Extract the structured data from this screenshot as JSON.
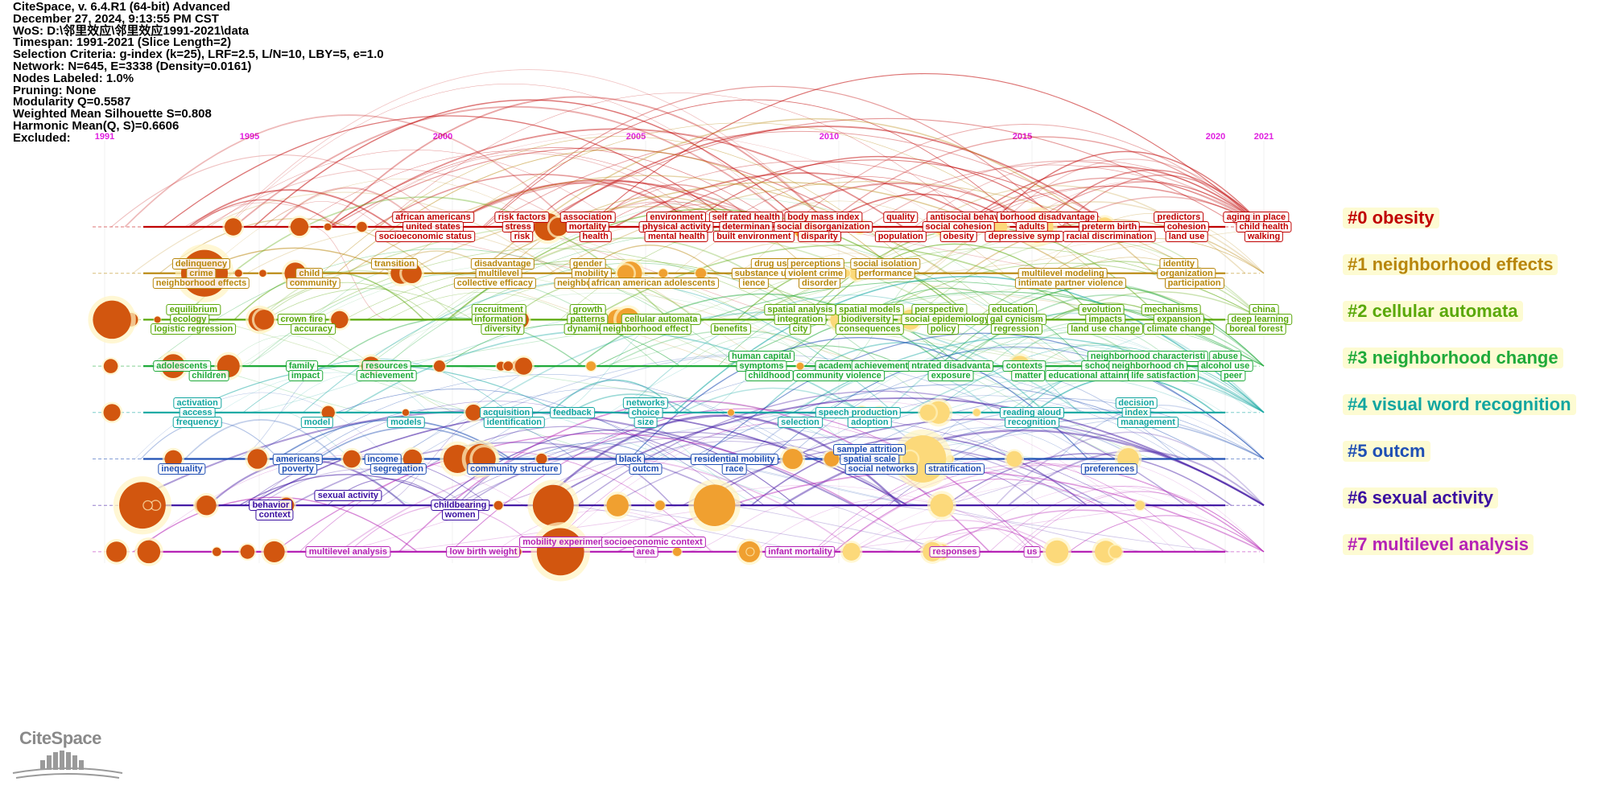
{
  "header": {
    "lines": [
      "CiteSpace, v. 6.4.R1 (64-bit) Advanced",
      "December 27, 2024, 9:13:55 PM CST",
      "WoS: D:\\邻里效应\\邻里效应1991-2021\\data",
      "Timespan: 1991-2021 (Slice Length=2)",
      "Selection Criteria: g-index (k=25), LRF=2.5, L/N=10, LBY=5, e=1.0",
      "Network: N=645, E=3338 (Density=0.0161)",
      "Nodes Labeled: 1.0%",
      "Pruning: None",
      "Modularity Q=0.5587",
      "Weighted Mean Silhouette S=0.808",
      "Harmonic Mean(Q, S)=0.6606",
      "Excluded:"
    ]
  },
  "timeline": {
    "years": [
      "1991",
      "1995",
      "2000",
      "2005",
      "2010",
      "2015",
      "2020",
      "2021"
    ],
    "start_year": 1991,
    "end_year": 2021
  },
  "clusters": [
    {
      "label": "#0 obesity",
      "color": "#c00000",
      "keywords": [
        {
          "t": "african americans",
          "y": 1999.5,
          "r": 0
        },
        {
          "t": "risk factors",
          "y": 2001.8,
          "r": 0
        },
        {
          "t": "association",
          "y": 2003.5,
          "r": 0
        },
        {
          "t": "environment",
          "y": 2005.8,
          "r": 0
        },
        {
          "t": "self rated health",
          "y": 2007.6,
          "r": 0
        },
        {
          "t": "body mass index",
          "y": 2009.6,
          "r": 0
        },
        {
          "t": "quality",
          "y": 2011.6,
          "r": 0
        },
        {
          "t": "antisocial behavior",
          "y": 2013.4,
          "r": 0
        },
        {
          "t": "borhood disadvantage",
          "y": 2015.4,
          "r": 0
        },
        {
          "t": "predictors",
          "y": 2018.8,
          "r": 0
        },
        {
          "t": "aging in place",
          "y": 2020.8,
          "r": 0
        },
        {
          "t": "united states",
          "y": 1999.5,
          "r": 1
        },
        {
          "t": "stress",
          "y": 2001.7,
          "r": 1
        },
        {
          "t": "mortality",
          "y": 2003.5,
          "r": 1
        },
        {
          "t": "physical activity",
          "y": 2005.8,
          "r": 1
        },
        {
          "t": "determinan",
          "y": 2007.6,
          "r": 1
        },
        {
          "t": "social disorganization",
          "y": 2009.6,
          "r": 1
        },
        {
          "t": "social cohesion",
          "y": 2013.1,
          "r": 1
        },
        {
          "t": "adults",
          "y": 2015.0,
          "r": 1
        },
        {
          "t": "preterm birth",
          "y": 2017.0,
          "r": 1
        },
        {
          "t": "cohesion",
          "y": 2019.0,
          "r": 1
        },
        {
          "t": "child health",
          "y": 2021.0,
          "r": 1
        },
        {
          "t": "socioeconomic status",
          "y": 1999.3,
          "r": 2
        },
        {
          "t": "risk",
          "y": 2001.8,
          "r": 2
        },
        {
          "t": "health",
          "y": 2003.7,
          "r": 2
        },
        {
          "t": "mental health",
          "y": 2005.8,
          "r": 2
        },
        {
          "t": "built environment",
          "y": 2007.8,
          "r": 2
        },
        {
          "t": "disparity",
          "y": 2009.5,
          "r": 2
        },
        {
          "t": "population",
          "y": 2011.6,
          "r": 2
        },
        {
          "t": "obesity",
          "y": 2013.1,
          "r": 2
        },
        {
          "t": "depressive symp",
          "y": 2014.8,
          "r": 2
        },
        {
          "t": "racial discrimination",
          "y": 2017.0,
          "r": 2
        },
        {
          "t": "land use",
          "y": 2019.0,
          "r": 2
        },
        {
          "t": "walking",
          "y": 2021.0,
          "r": 2
        }
      ]
    },
    {
      "label": "#1 neighborhood effects",
      "color": "#b8860b",
      "keywords": [
        {
          "t": "delinquency",
          "y": 1993.5,
          "r": 0
        },
        {
          "t": "transition",
          "y": 1998.5,
          "r": 0
        },
        {
          "t": "disadvantage",
          "y": 2001.3,
          "r": 0
        },
        {
          "t": "gender",
          "y": 2003.5,
          "r": 0
        },
        {
          "t": "drug use",
          "y": 2008.3,
          "r": 0
        },
        {
          "t": "perceptions",
          "y": 2009.4,
          "r": 0
        },
        {
          "t": "social isolation",
          "y": 2011.2,
          "r": 0
        },
        {
          "t": "identity",
          "y": 2018.8,
          "r": 0
        },
        {
          "t": "crime",
          "y": 1993.5,
          "r": 1
        },
        {
          "t": "child",
          "y": 1996.3,
          "r": 1
        },
        {
          "t": "multilevel",
          "y": 2001.2,
          "r": 1
        },
        {
          "t": "mobility",
          "y": 2003.6,
          "r": 1
        },
        {
          "t": "substance use",
          "y": 2008.1,
          "r": 1
        },
        {
          "t": "violent crime",
          "y": 2009.4,
          "r": 1
        },
        {
          "t": "performance",
          "y": 2011.2,
          "r": 1
        },
        {
          "t": "multilevel modeling",
          "y": 2015.8,
          "r": 1
        },
        {
          "t": "organization",
          "y": 2019.0,
          "r": 1
        },
        {
          "t": "neighborhood effects",
          "y": 1993.5,
          "r": 2
        },
        {
          "t": "community",
          "y": 1996.4,
          "r": 2
        },
        {
          "t": "collective efficacy",
          "y": 2001.1,
          "r": 2
        },
        {
          "t": "neighbor",
          "y": 2003.2,
          "r": 2
        },
        {
          "t": "african american adolescents",
          "y": 2005.2,
          "r": 2
        },
        {
          "t": "ience",
          "y": 2007.8,
          "r": 2
        },
        {
          "t": "disorder",
          "y": 2009.5,
          "r": 2
        },
        {
          "t": "intimate partner violence",
          "y": 2016.0,
          "r": 2
        },
        {
          "t": "participation",
          "y": 2019.2,
          "r": 2
        }
      ]
    },
    {
      "label": "#2 cellular automata",
      "color": "#5aa80a",
      "keywords": [
        {
          "t": "equilibrium",
          "y": 1993.3,
          "r": 0
        },
        {
          "t": "recruitment",
          "y": 2001.2,
          "r": 0
        },
        {
          "t": "growth",
          "y": 2003.5,
          "r": 0
        },
        {
          "t": "spatial analysis",
          "y": 2009.0,
          "r": 0
        },
        {
          "t": "spatial models",
          "y": 2010.8,
          "r": 0
        },
        {
          "t": "perspective",
          "y": 2012.6,
          "r": 0
        },
        {
          "t": "education",
          "y": 2014.5,
          "r": 0
        },
        {
          "t": "evolution",
          "y": 2016.8,
          "r": 0
        },
        {
          "t": "mechanisms",
          "y": 2018.6,
          "r": 0
        },
        {
          "t": "china",
          "y": 2021.0,
          "r": 0
        },
        {
          "t": "ecology",
          "y": 1993.2,
          "r": 1
        },
        {
          "t": "crown fire",
          "y": 1996.1,
          "r": 1
        },
        {
          "t": "information",
          "y": 2001.2,
          "r": 1
        },
        {
          "t": "patterns",
          "y": 2003.5,
          "r": 1
        },
        {
          "t": "cellular automata",
          "y": 2005.4,
          "r": 1
        },
        {
          "t": "integration",
          "y": 2009.0,
          "r": 1
        },
        {
          "t": "biodiversity",
          "y": 2010.7,
          "r": 1
        },
        {
          "t": "social epidemiology",
          "y": 2012.8,
          "r": 1
        },
        {
          "t": "gal cynicism",
          "y": 2014.6,
          "r": 1
        },
        {
          "t": "impacts",
          "y": 2016.9,
          "r": 1
        },
        {
          "t": "expansion",
          "y": 2018.8,
          "r": 1
        },
        {
          "t": "deep learning",
          "y": 2020.9,
          "r": 1
        },
        {
          "t": "logistic regression",
          "y": 1993.3,
          "r": 2
        },
        {
          "t": "accuracy",
          "y": 1996.4,
          "r": 2
        },
        {
          "t": "diversity",
          "y": 2001.3,
          "r": 2
        },
        {
          "t": "dynamics",
          "y": 2003.5,
          "r": 2
        },
        {
          "t": "neighborhood effect",
          "y": 2005.0,
          "r": 2
        },
        {
          "t": "benefits",
          "y": 2007.2,
          "r": 2
        },
        {
          "t": "city",
          "y": 2009.0,
          "r": 2
        },
        {
          "t": "consequences",
          "y": 2010.8,
          "r": 2
        },
        {
          "t": "policy",
          "y": 2012.7,
          "r": 2
        },
        {
          "t": "regression",
          "y": 2014.6,
          "r": 2
        },
        {
          "t": "land use change",
          "y": 2016.9,
          "r": 2
        },
        {
          "t": "climate change",
          "y": 2018.8,
          "r": 2
        },
        {
          "t": "boreal forest",
          "y": 2020.8,
          "r": 2
        }
      ]
    },
    {
      "label": "#3 neighborhood change",
      "color": "#1faa3a",
      "keywords": [
        {
          "t": "human capital",
          "y": 2008.0,
          "r": 0
        },
        {
          "t": "neighborhood characteristi",
          "y": 2018.0,
          "r": 0
        },
        {
          "t": "abuse",
          "y": 2020.0,
          "r": 0
        },
        {
          "t": "adolescents",
          "y": 1993.0,
          "r": 1
        },
        {
          "t": "family",
          "y": 1996.1,
          "r": 1
        },
        {
          "t": "resources",
          "y": 1998.3,
          "r": 1
        },
        {
          "t": "symptoms",
          "y": 2008.0,
          "r": 1
        },
        {
          "t": "academ",
          "y": 2009.9,
          "r": 1
        },
        {
          "t": "achievement",
          "y": 2011.1,
          "r": 1
        },
        {
          "t": "ntrated disadvanta",
          "y": 2012.9,
          "r": 1
        },
        {
          "t": "contexts",
          "y": 2014.8,
          "r": 1
        },
        {
          "t": "schools",
          "y": 2016.8,
          "r": 1
        },
        {
          "t": "neighborhood ch",
          "y": 2018.0,
          "r": 1
        },
        {
          "t": "alcohol use",
          "y": 2020.0,
          "r": 1
        },
        {
          "t": "children",
          "y": 1993.7,
          "r": 2
        },
        {
          "t": "impact",
          "y": 1996.2,
          "r": 2
        },
        {
          "t": "achievement",
          "y": 1998.3,
          "r": 2
        },
        {
          "t": "childhood",
          "y": 2008.2,
          "r": 2
        },
        {
          "t": "community violence",
          "y": 2010.0,
          "r": 2
        },
        {
          "t": "exposure",
          "y": 2012.9,
          "r": 2
        },
        {
          "t": "matter",
          "y": 2014.9,
          "r": 2
        },
        {
          "t": "educational attainm",
          "y": 2016.5,
          "r": 2
        },
        {
          "t": "life satisfaction",
          "y": 2018.4,
          "r": 2
        },
        {
          "t": "peer",
          "y": 2020.2,
          "r": 2
        }
      ]
    },
    {
      "label": "#4 visual word recognition",
      "color": "#12a6a0",
      "keywords": [
        {
          "t": "activation",
          "y": 1993.4,
          "r": 0
        },
        {
          "t": "networks",
          "y": 2005.0,
          "r": 0
        },
        {
          "t": "decision",
          "y": 2017.7,
          "r": 0
        },
        {
          "t": "access",
          "y": 1993.4,
          "r": 1
        },
        {
          "t": "acquisition",
          "y": 2001.4,
          "r": 1
        },
        {
          "t": "feedback",
          "y": 2003.1,
          "r": 1
        },
        {
          "t": "choice",
          "y": 2005.0,
          "r": 1
        },
        {
          "t": "speech production",
          "y": 2010.5,
          "r": 1
        },
        {
          "t": "reading aloud",
          "y": 2015.0,
          "r": 1
        },
        {
          "t": "index",
          "y": 2017.7,
          "r": 1
        },
        {
          "t": "frequency",
          "y": 1993.4,
          "r": 2
        },
        {
          "t": "model",
          "y": 1996.5,
          "r": 2
        },
        {
          "t": "models",
          "y": 1998.8,
          "r": 2
        },
        {
          "t": "identification",
          "y": 2001.6,
          "r": 2
        },
        {
          "t": "size",
          "y": 2005.0,
          "r": 2
        },
        {
          "t": "selection",
          "y": 2009.0,
          "r": 2
        },
        {
          "t": "adoption",
          "y": 2010.8,
          "r": 2
        },
        {
          "t": "recognition",
          "y": 2015.0,
          "r": 2
        },
        {
          "t": "management",
          "y": 2018.0,
          "r": 2
        }
      ]
    },
    {
      "label": "#5 outcm",
      "color": "#1f4fb4",
      "keywords": [
        {
          "t": "sample attrition",
          "y": 2010.8,
          "r": 0
        },
        {
          "t": "americans",
          "y": 1996.0,
          "r": 1
        },
        {
          "t": "income",
          "y": 1998.2,
          "r": 1
        },
        {
          "t": "black",
          "y": 2004.6,
          "r": 1
        },
        {
          "t": "residential mobility",
          "y": 2007.3,
          "r": 1
        },
        {
          "t": "spatial scale",
          "y": 2010.8,
          "r": 1
        },
        {
          "t": "inequality",
          "y": 1993.0,
          "r": 2
        },
        {
          "t": "poverty",
          "y": 1996.0,
          "r": 2
        },
        {
          "t": "segregation",
          "y": 1998.6,
          "r": 2
        },
        {
          "t": "community structure",
          "y": 2001.6,
          "r": 2
        },
        {
          "t": "outcm",
          "y": 2005.0,
          "r": 2
        },
        {
          "t": "race",
          "y": 2007.3,
          "r": 2
        },
        {
          "t": "social networks",
          "y": 2011.1,
          "r": 2
        },
        {
          "t": "stratification",
          "y": 2013.0,
          "r": 2
        },
        {
          "t": "preferences",
          "y": 2017.0,
          "r": 2
        }
      ]
    },
    {
      "label": "#6 sexual activity",
      "color": "#3a0fa0",
      "keywords": [
        {
          "t": "sexual activity",
          "y": 1997.3,
          "r": 0
        },
        {
          "t": "behavior",
          "y": 1995.3,
          "r": 1
        },
        {
          "t": "childbearing",
          "y": 2000.2,
          "r": 1
        },
        {
          "t": "context",
          "y": 1995.4,
          "r": 2
        },
        {
          "t": "women",
          "y": 2000.2,
          "r": 2
        }
      ]
    },
    {
      "label": "#7 multilevel analysis",
      "color": "#b522b5",
      "keywords": [
        {
          "t": "mobility experiment",
          "y": 2002.9,
          "r": 0
        },
        {
          "t": "socioeconomic context",
          "y": 2005.2,
          "r": 0
        },
        {
          "t": "multilevel analysis",
          "y": 1997.3,
          "r": 1
        },
        {
          "t": "low birth weight",
          "y": 2000.8,
          "r": 1
        },
        {
          "t": "area",
          "y": 2005.0,
          "r": 1
        },
        {
          "t": "infant mortality",
          "y": 2009.0,
          "r": 1
        },
        {
          "t": "responses",
          "y": 2013.0,
          "r": 1
        },
        {
          "t": "us",
          "y": 2015.0,
          "r": 1
        }
      ]
    }
  ],
  "logo": {
    "text": "CiteSpace"
  }
}
